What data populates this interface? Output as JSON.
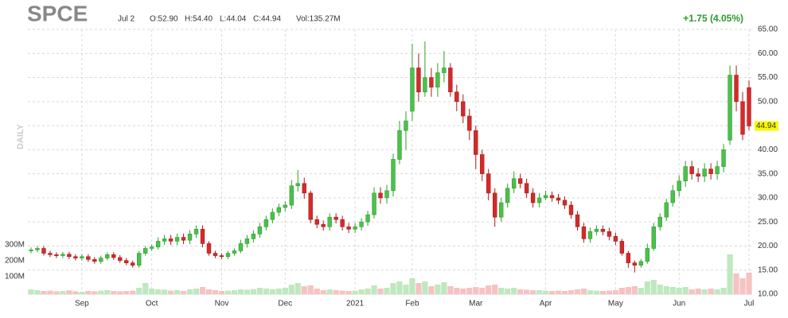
{
  "chart_data": {
    "type": "candlestick",
    "header": {
      "ticker": "SPCE",
      "date": "Jul 2",
      "open": "O:52.90",
      "high": "H:54.40",
      "low": "L:44.04",
      "close": "C:44.94",
      "volume": "Vol:135.27M",
      "change": "+1.75 (4.05%)",
      "period": "DAILY"
    },
    "last_price_label": "44.94",
    "categories": [
      null,
      null,
      null,
      null,
      null,
      null,
      null,
      null,
      "Sep",
      null,
      null,
      null,
      null,
      null,
      null,
      null,
      null,
      null,
      null,
      "Oct",
      null,
      null,
      null,
      null,
      null,
      null,
      null,
      null,
      null,
      null,
      "Nov",
      null,
      null,
      null,
      null,
      null,
      null,
      null,
      null,
      null,
      "Dec",
      null,
      null,
      null,
      null,
      null,
      null,
      null,
      null,
      null,
      null,
      "2021",
      null,
      null,
      null,
      null,
      null,
      null,
      null,
      null,
      "Feb",
      null,
      null,
      null,
      null,
      null,
      null,
      null,
      null,
      null,
      "Mar",
      null,
      null,
      null,
      null,
      null,
      null,
      null,
      null,
      null,
      null,
      "Apr",
      null,
      null,
      null,
      null,
      null,
      null,
      null,
      null,
      null,
      null,
      "May",
      null,
      null,
      null,
      null,
      null,
      null,
      null,
      null,
      null,
      "Jun",
      null,
      null,
      null,
      null,
      null,
      null,
      null,
      null,
      null,
      null,
      "Jul"
    ],
    "open": [
      19.0,
      19.2,
      19.5,
      18.5,
      18.2,
      18.0,
      18.3,
      17.8,
      17.5,
      17.8,
      17.2,
      16.8,
      17.5,
      18.2,
      17.6,
      17.0,
      16.5,
      16.0,
      18.5,
      19.5,
      19.8,
      21.0,
      21.5,
      21.0,
      21.8,
      21.2,
      22.5,
      23.5,
      20.5,
      18.5,
      18.0,
      17.8,
      18.5,
      19.0,
      20.5,
      21.5,
      22.5,
      24.0,
      25.5,
      27.0,
      28.0,
      28.5,
      32.5,
      33.0,
      31.0,
      25.5,
      24.5,
      24.0,
      26.0,
      25.5,
      24.0,
      23.5,
      24.0,
      25.0,
      26.5,
      31.0,
      30.0,
      31.5,
      38.0,
      44.0,
      48.0,
      57.0,
      52.0,
      55.0,
      53.0,
      56.0,
      57.0,
      52.0,
      50.0,
      47.0,
      44.0,
      39.0,
      35.0,
      31.0,
      26.0,
      29.0,
      32.0,
      34.0,
      33.0,
      31.0,
      29.0,
      30.0,
      30.5,
      30.0,
      29.5,
      28.5,
      26.5,
      24.0,
      21.5,
      23.0,
      23.5,
      23.0,
      22.0,
      21.0,
      18.5,
      16.5,
      16.0,
      16.8,
      19.5,
      24.0,
      26.0,
      29.0,
      31.5,
      33.5,
      36.5,
      35.0,
      34.5,
      36.0,
      35.0,
      36.5,
      42.0,
      55.5,
      50.0,
      52.9
    ],
    "high": [
      19.7,
      20.0,
      20.0,
      19.0,
      18.7,
      18.8,
      18.8,
      18.3,
      18.3,
      18.3,
      17.7,
      18.0,
      18.7,
      18.7,
      18.1,
      17.5,
      17.0,
      19.0,
      20.0,
      20.3,
      21.8,
      22.3,
      22.3,
      22.6,
      22.6,
      23.3,
      24.3,
      24.3,
      21.0,
      19.0,
      18.5,
      19.0,
      19.5,
      21.3,
      22.3,
      23.3,
      24.8,
      26.3,
      27.8,
      28.8,
      29.3,
      33.7,
      35.8,
      34.2,
      31.5,
      26.3,
      25.3,
      26.8,
      26.8,
      26.3,
      24.8,
      24.8,
      25.8,
      27.3,
      32.2,
      32.2,
      32.7,
      39.2,
      46.0,
      48.0,
      62.0,
      60.0,
      62.5,
      57.0,
      58.0,
      60.5,
      58.0,
      53.5,
      51.5,
      48.5,
      45.0,
      40.0,
      36.0,
      32.0,
      30.0,
      33.0,
      35.5,
      35.0,
      34.0,
      32.0,
      31.0,
      31.5,
      31.3,
      30.8,
      30.3,
      29.3,
      27.3,
      24.8,
      23.8,
      24.3,
      24.3,
      23.8,
      22.8,
      21.5,
      19.0,
      17.0,
      17.3,
      20.5,
      24.8,
      26.8,
      29.8,
      32.7,
      34.7,
      37.7,
      37.7,
      36.2,
      37.2,
      37.2,
      37.7,
      41.2,
      57.5,
      57.5,
      52.0,
      54.4
    ],
    "low": [
      18.5,
      18.7,
      18.0,
      17.7,
      17.5,
      17.5,
      17.3,
      17.0,
      17.0,
      16.7,
      16.3,
      16.3,
      17.0,
      17.1,
      16.5,
      16.0,
      15.5,
      15.5,
      18.0,
      19.0,
      19.3,
      20.2,
      20.2,
      20.2,
      20.4,
      20.4,
      21.7,
      19.7,
      18.0,
      17.5,
      17.3,
      17.3,
      18.0,
      18.5,
      19.7,
      20.7,
      21.7,
      23.2,
      24.7,
      26.2,
      27.2,
      27.7,
      31.3,
      29.8,
      24.7,
      23.7,
      23.2,
      23.2,
      24.7,
      23.2,
      22.7,
      22.7,
      23.2,
      24.2,
      25.7,
      28.8,
      28.8,
      30.3,
      37.0,
      40.0,
      46.0,
      50.0,
      51.0,
      51.0,
      51.0,
      54.0,
      51.0,
      48.0,
      45.5,
      42.0,
      36.0,
      33.5,
      29.5,
      24.0,
      25.0,
      28.0,
      31.0,
      32.0,
      30.0,
      28.0,
      28.0,
      29.5,
      29.2,
      28.7,
      27.7,
      25.7,
      23.2,
      20.7,
      20.7,
      22.2,
      22.2,
      21.2,
      20.2,
      18.0,
      15.5,
      14.5,
      15.5,
      16.3,
      19.0,
      23.2,
      25.2,
      28.2,
      30.3,
      32.3,
      33.8,
      33.3,
      33.3,
      33.8,
      33.8,
      35.3,
      41.0,
      48.0,
      42.0,
      44.04
    ],
    "close": [
      19.2,
      19.5,
      18.5,
      18.2,
      18.0,
      18.3,
      17.8,
      17.5,
      17.8,
      17.2,
      16.8,
      17.5,
      18.2,
      17.6,
      17.0,
      16.5,
      16.0,
      18.5,
      19.5,
      19.8,
      21.0,
      21.5,
      21.0,
      21.8,
      21.2,
      22.5,
      23.5,
      20.5,
      18.5,
      18.0,
      17.8,
      18.5,
      19.0,
      20.5,
      21.5,
      22.5,
      24.0,
      25.5,
      27.0,
      28.0,
      28.5,
      32.5,
      33.0,
      31.0,
      25.5,
      24.5,
      24.0,
      26.0,
      25.5,
      24.0,
      23.5,
      24.0,
      25.0,
      26.5,
      31.0,
      30.0,
      31.5,
      38.0,
      44.0,
      46.0,
      57.0,
      52.0,
      55.0,
      53.0,
      56.0,
      57.0,
      52.0,
      50.0,
      47.0,
      44.0,
      39.0,
      35.0,
      31.0,
      26.0,
      29.0,
      32.0,
      34.0,
      33.0,
      31.0,
      29.0,
      30.0,
      30.5,
      30.0,
      29.5,
      28.5,
      26.5,
      24.0,
      21.5,
      23.0,
      23.5,
      23.0,
      22.0,
      21.0,
      18.5,
      16.5,
      16.0,
      16.8,
      19.5,
      24.0,
      26.0,
      29.0,
      31.5,
      33.5,
      36.5,
      35.0,
      34.5,
      36.0,
      35.0,
      36.5,
      40.0,
      55.5,
      50.0,
      43.19,
      44.94
    ],
    "volume": [
      30,
      25,
      20,
      22,
      18,
      20,
      24,
      18,
      15,
      20,
      18,
      22,
      25,
      20,
      18,
      20,
      22,
      40,
      70,
      35,
      30,
      28,
      22,
      25,
      20,
      30,
      35,
      45,
      30,
      25,
      20,
      22,
      25,
      30,
      28,
      32,
      40,
      35,
      30,
      35,
      40,
      60,
      70,
      50,
      55,
      35,
      25,
      30,
      25,
      22,
      20,
      22,
      30,
      35,
      55,
      35,
      40,
      70,
      80,
      60,
      100,
      70,
      80,
      50,
      60,
      75,
      50,
      40,
      35,
      40,
      45,
      40,
      55,
      60,
      40,
      35,
      40,
      30,
      28,
      25,
      25,
      22,
      20,
      22,
      20,
      25,
      30,
      35,
      25,
      22,
      20,
      22,
      25,
      40,
      45,
      50,
      40,
      80,
      90,
      60,
      50,
      45,
      40,
      45,
      30,
      35,
      30,
      35,
      30,
      40,
      250,
      130,
      100,
      135.27
    ],
    "up_color": "#2e9e2e",
    "up_fill": "#4cc04c",
    "down_color": "#a81c1c",
    "down_fill": "#d42a2a",
    "volume_up_color": "#bfe8bf",
    "volume_down_color": "#f6c2c2",
    "ylim": [
      10,
      65
    ],
    "yticks": [
      {
        "value": 10,
        "label": "10.00"
      },
      {
        "value": 15,
        "label": "15.00"
      },
      {
        "value": 20,
        "label": "20.00"
      },
      {
        "value": 25,
        "label": "25.00"
      },
      {
        "value": 30,
        "label": "30.00"
      },
      {
        "value": 35,
        "label": "35.00"
      },
      {
        "value": 40,
        "label": "40.00"
      },
      {
        "value": 45,
        "label": "45.00"
      },
      {
        "value": 50,
        "label": "50.00"
      },
      {
        "value": 55,
        "label": "55.00"
      },
      {
        "value": 60,
        "label": "60.00"
      },
      {
        "value": 65,
        "label": "65.00"
      }
    ],
    "y2lim": [
      0,
      1665
    ],
    "y2ticks": [
      {
        "value": 100,
        "label": "100M"
      },
      {
        "value": 200,
        "label": "200M"
      },
      {
        "value": 300,
        "label": "300M"
      }
    ],
    "grid": true
  }
}
